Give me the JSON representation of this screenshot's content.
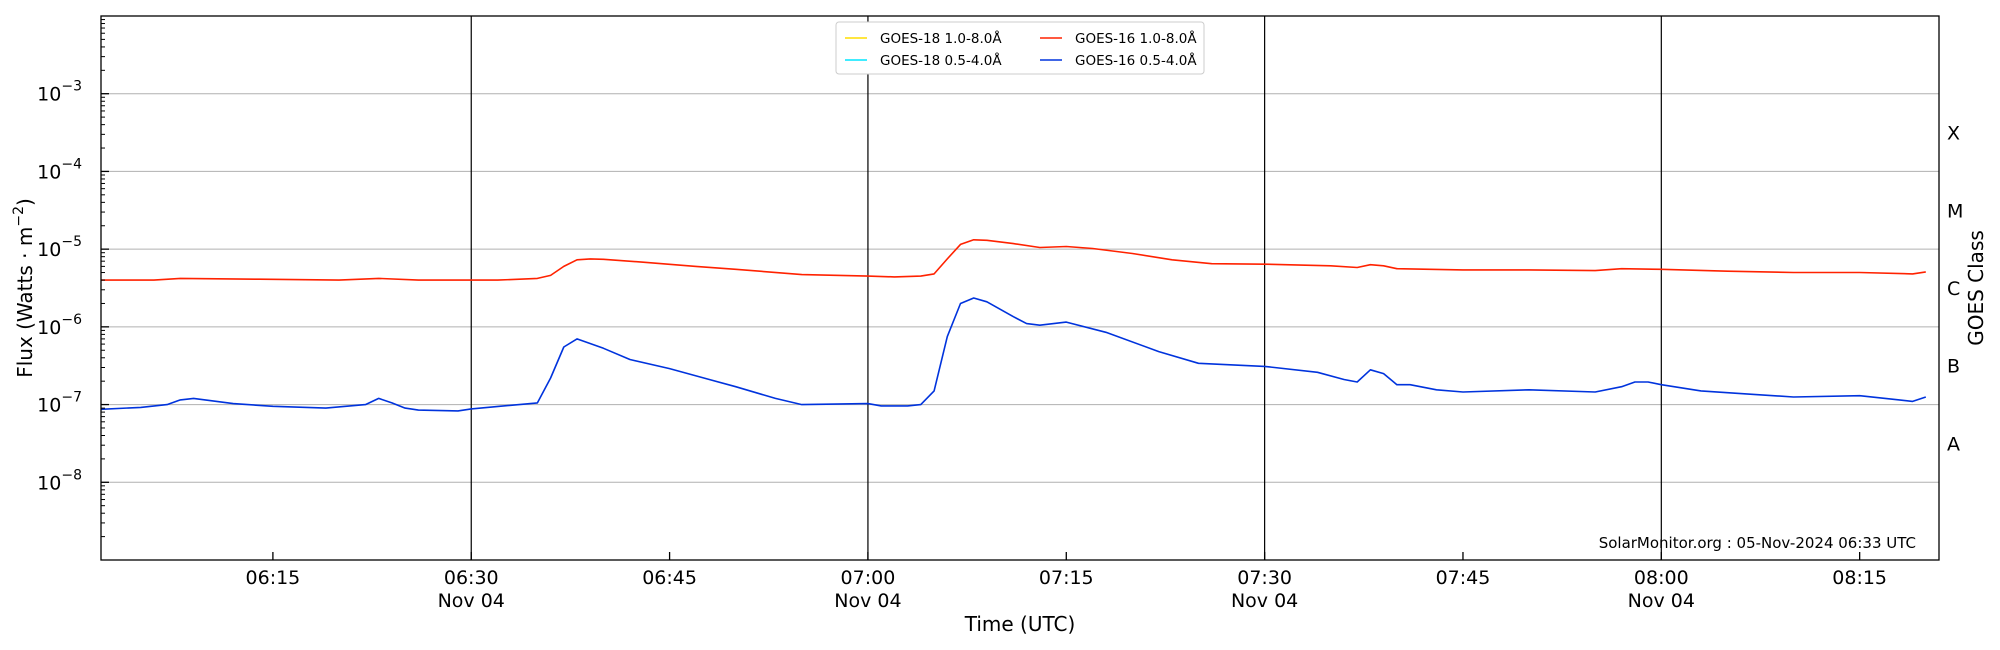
{
  "chart_data": {
    "type": "line",
    "xlabel": "Time (UTC)",
    "ylabel": "Flux (Watts · m",
    "ylabel_exponent": "−2",
    "ylabel_close": ")",
    "right_axis_label": "GOES Class",
    "credit": "SolarMonitor.org : 05-Nov-2024 06:33 UTC",
    "y_scale": "log",
    "ylim": [
      1e-09,
      0.01
    ],
    "xlim": [
      "06:02",
      "08:21"
    ],
    "x_tick_labels": [
      {
        "time": "06:15",
        "label": "06:15",
        "date": ""
      },
      {
        "time": "06:30",
        "label": "06:30",
        "date": "Nov 04"
      },
      {
        "time": "06:45",
        "label": "06:45",
        "date": ""
      },
      {
        "time": "07:00",
        "label": "07:00",
        "date": "Nov 04"
      },
      {
        "time": "07:15",
        "label": "07:15",
        "date": ""
      },
      {
        "time": "07:30",
        "label": "07:30",
        "date": "Nov 04"
      },
      {
        "time": "07:45",
        "label": "07:45",
        "date": ""
      },
      {
        "time": "08:00",
        "label": "08:00",
        "date": "Nov 04"
      },
      {
        "time": "08:15",
        "label": "08:15",
        "date": ""
      }
    ],
    "vertical_lines": [
      "06:30",
      "07:00",
      "07:30",
      "08:00"
    ],
    "y_tick_labels": [
      {
        "value": 1e-08,
        "base": "10",
        "exp": "−8"
      },
      {
        "value": 1e-07,
        "base": "10",
        "exp": "−7"
      },
      {
        "value": 1e-06,
        "base": "10",
        "exp": "−6"
      },
      {
        "value": 1e-05,
        "base": "10",
        "exp": "−5"
      },
      {
        "value": 0.0001,
        "base": "10",
        "exp": "−4"
      },
      {
        "value": 0.001,
        "base": "10",
        "exp": "−3"
      }
    ],
    "goes_classes": [
      {
        "label": "A",
        "value": 3.16e-08
      },
      {
        "label": "B",
        "value": 3.16e-07
      },
      {
        "label": "C",
        "value": 3.16e-06
      },
      {
        "label": "M",
        "value": 3.16e-05
      },
      {
        "label": "X",
        "value": 0.000316
      }
    ],
    "grid": true,
    "legend_position": "top-center",
    "legend": [
      {
        "name": "GOES-18 1.0-8.0Å",
        "color": "#ffdd00"
      },
      {
        "name": "GOES-18 0.5-4.0Å",
        "color": "#00e5ff"
      },
      {
        "name": "GOES-16 1.0-8.0Å",
        "color": "#ff2200"
      },
      {
        "name": "GOES-16 0.5-4.0Å",
        "color": "#0033dd"
      }
    ],
    "series": [
      {
        "name": "GOES-16 1.0-8.0Å",
        "color": "#ff2200",
        "points": [
          [
            "06:02",
            4e-06
          ],
          [
            "06:06",
            4e-06
          ],
          [
            "06:08",
            4.2e-06
          ],
          [
            "06:14",
            4.1e-06
          ],
          [
            "06:20",
            4e-06
          ],
          [
            "06:23",
            4.2e-06
          ],
          [
            "06:26",
            4e-06
          ],
          [
            "06:32",
            4e-06
          ],
          [
            "06:35",
            4.2e-06
          ],
          [
            "06:36",
            4.6e-06
          ],
          [
            "06:37",
            6e-06
          ],
          [
            "06:38",
            7.3e-06
          ],
          [
            "06:39",
            7.5e-06
          ],
          [
            "06:40",
            7.4e-06
          ],
          [
            "06:43",
            6.8e-06
          ],
          [
            "06:47",
            6e-06
          ],
          [
            "06:50",
            5.5e-06
          ],
          [
            "06:55",
            4.7e-06
          ],
          [
            "07:00",
            4.5e-06
          ],
          [
            "07:02",
            4.4e-06
          ],
          [
            "07:04",
            4.5e-06
          ],
          [
            "07:05",
            4.8e-06
          ],
          [
            "07:06",
            7.5e-06
          ],
          [
            "07:07",
            1.15e-05
          ],
          [
            "07:08",
            1.32e-05
          ],
          [
            "07:09",
            1.3e-05
          ],
          [
            "07:11",
            1.18e-05
          ],
          [
            "07:13",
            1.05e-05
          ],
          [
            "07:15",
            1.08e-05
          ],
          [
            "07:17",
            1.02e-05
          ],
          [
            "07:20",
            8.8e-06
          ],
          [
            "07:23",
            7.3e-06
          ],
          [
            "07:26",
            6.5e-06
          ],
          [
            "07:30",
            6.4e-06
          ],
          [
            "07:35",
            6.1e-06
          ],
          [
            "07:37",
            5.8e-06
          ],
          [
            "07:38",
            6.3e-06
          ],
          [
            "07:39",
            6.1e-06
          ],
          [
            "07:40",
            5.6e-06
          ],
          [
            "07:45",
            5.4e-06
          ],
          [
            "07:50",
            5.4e-06
          ],
          [
            "07:55",
            5.3e-06
          ],
          [
            "07:57",
            5.6e-06
          ],
          [
            "08:00",
            5.5e-06
          ],
          [
            "08:05",
            5.2e-06
          ],
          [
            "08:10",
            5e-06
          ],
          [
            "08:15",
            5e-06
          ],
          [
            "08:19",
            4.8e-06
          ],
          [
            "08:20",
            5.1e-06
          ]
        ]
      },
      {
        "name": "GOES-16 0.5-4.0Å",
        "color": "#0033dd",
        "points": [
          [
            "06:02",
            8.7e-08
          ],
          [
            "06:05",
            9.2e-08
          ],
          [
            "06:07",
            1e-07
          ],
          [
            "06:08",
            1.15e-07
          ],
          [
            "06:09",
            1.2e-07
          ],
          [
            "06:12",
            1.03e-07
          ],
          [
            "06:15",
            9.5e-08
          ],
          [
            "06:19",
            9e-08
          ],
          [
            "06:22",
            1e-07
          ],
          [
            "06:23",
            1.2e-07
          ],
          [
            "06:24",
            1.05e-07
          ],
          [
            "06:25",
            9e-08
          ],
          [
            "06:26",
            8.5e-08
          ],
          [
            "06:29",
            8.3e-08
          ],
          [
            "06:30",
            8.8e-08
          ],
          [
            "06:33",
            9.8e-08
          ],
          [
            "06:35",
            1.05e-07
          ],
          [
            "06:36",
            2.2e-07
          ],
          [
            "06:37",
            5.5e-07
          ],
          [
            "06:38",
            7e-07
          ],
          [
            "06:40",
            5.3e-07
          ],
          [
            "06:42",
            3.8e-07
          ],
          [
            "06:45",
            2.9e-07
          ],
          [
            "06:48",
            2.1e-07
          ],
          [
            "06:50",
            1.7e-07
          ],
          [
            "06:53",
            1.2e-07
          ],
          [
            "06:55",
            1e-07
          ],
          [
            "07:00",
            1.03e-07
          ],
          [
            "07:01",
            9.6e-08
          ],
          [
            "07:03",
            9.6e-08
          ],
          [
            "07:04",
            1e-07
          ],
          [
            "07:05",
            1.5e-07
          ],
          [
            "07:06",
            7.5e-07
          ],
          [
            "07:07",
            2e-06
          ],
          [
            "07:08",
            2.35e-06
          ],
          [
            "07:09",
            2.1e-06
          ],
          [
            "07:11",
            1.35e-06
          ],
          [
            "07:12",
            1.1e-06
          ],
          [
            "07:13",
            1.05e-06
          ],
          [
            "07:15",
            1.15e-06
          ],
          [
            "07:18",
            8.5e-07
          ],
          [
            "07:22",
            4.8e-07
          ],
          [
            "07:25",
            3.4e-07
          ],
          [
            "07:30",
            3.1e-07
          ],
          [
            "07:34",
            2.6e-07
          ],
          [
            "07:36",
            2.1e-07
          ],
          [
            "07:37",
            1.95e-07
          ],
          [
            "07:38",
            2.8e-07
          ],
          [
            "07:39",
            2.5e-07
          ],
          [
            "07:40",
            1.8e-07
          ],
          [
            "07:41",
            1.8e-07
          ],
          [
            "07:43",
            1.55e-07
          ],
          [
            "07:45",
            1.45e-07
          ],
          [
            "07:50",
            1.55e-07
          ],
          [
            "07:55",
            1.45e-07
          ],
          [
            "07:57",
            1.7e-07
          ],
          [
            "07:58",
            1.95e-07
          ],
          [
            "07:59",
            1.95e-07
          ],
          [
            "08:00",
            1.8e-07
          ],
          [
            "08:03",
            1.5e-07
          ],
          [
            "08:07",
            1.35e-07
          ],
          [
            "08:10",
            1.25e-07
          ],
          [
            "08:15",
            1.3e-07
          ],
          [
            "08:18",
            1.15e-07
          ],
          [
            "08:19",
            1.1e-07
          ],
          [
            "08:20",
            1.25e-07
          ]
        ]
      }
    ]
  }
}
